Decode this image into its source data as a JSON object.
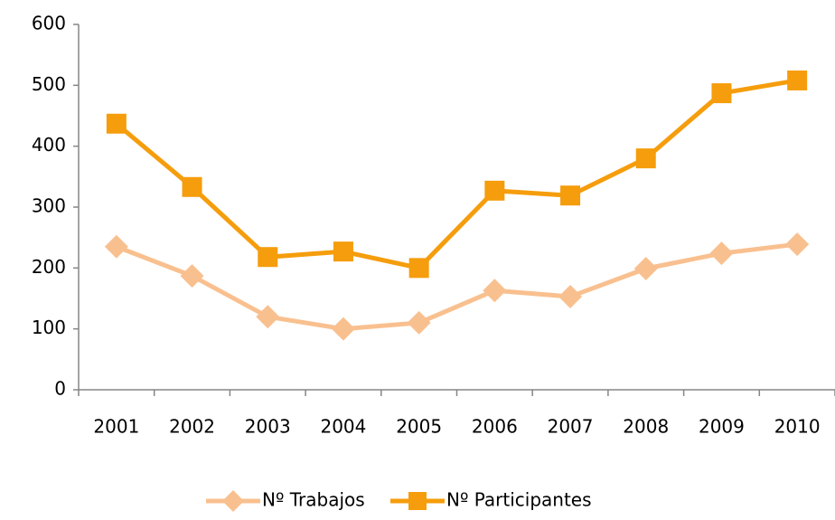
{
  "chart_data": {
    "type": "line",
    "categories": [
      "2001",
      "2002",
      "2003",
      "2004",
      "2005",
      "2006",
      "2007",
      "2008",
      "2009",
      "2010"
    ],
    "series": [
      {
        "name": "Nº Trabajos",
        "color": "#f9c08f",
        "marker": "diamond",
        "values": [
          235,
          187,
          120,
          100,
          110,
          163,
          153,
          199,
          224,
          239
        ]
      },
      {
        "name": "Nº Participantes",
        "color": "#f59d0c",
        "marker": "square",
        "values": [
          437,
          333,
          218,
          227,
          200,
          327,
          319,
          380,
          487,
          508
        ]
      }
    ],
    "ylim": [
      0,
      600
    ],
    "yticks": [
      0,
      100,
      200,
      300,
      400,
      500,
      600
    ],
    "grid": false,
    "legend": "bottom"
  }
}
